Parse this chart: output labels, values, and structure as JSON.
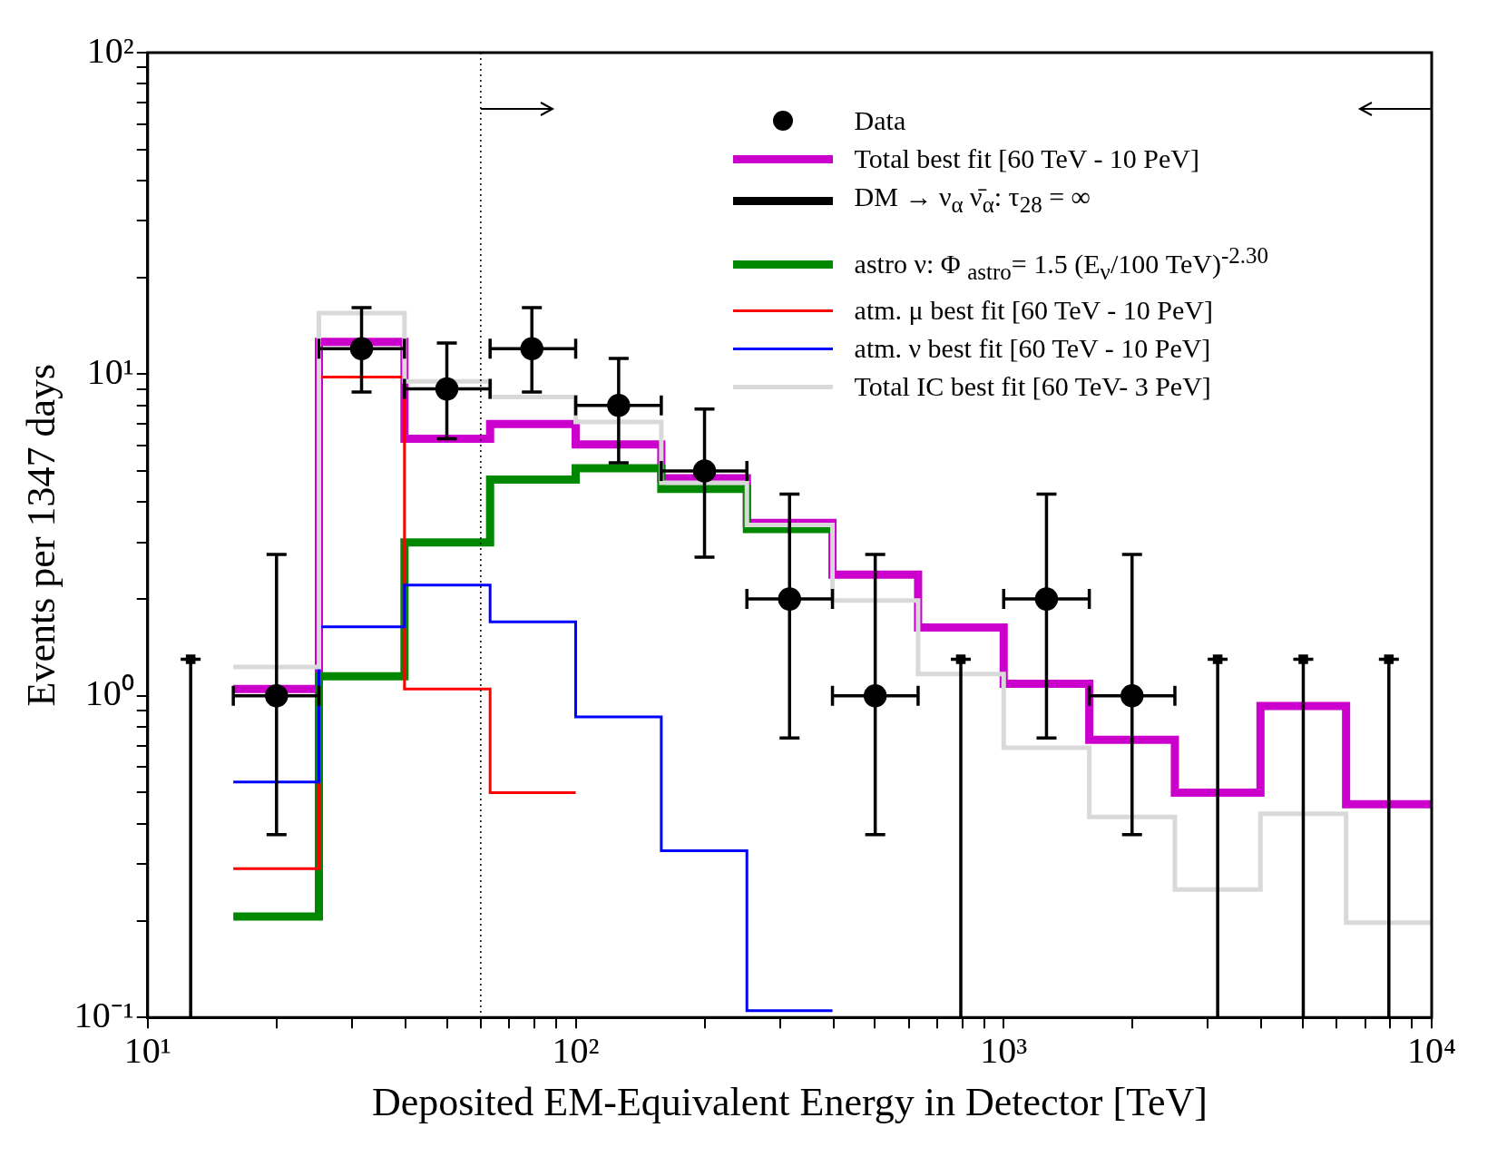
{
  "chart_data": {
    "type": "histogram",
    "xlabel": "Deposited EM-Equivalent Energy in Detector [TeV]",
    "ylabel": "Events per 1347 days",
    "log": "xy",
    "xlim": [
      10,
      10000
    ],
    "ylim": [
      0.1,
      100
    ],
    "xticks": [
      {
        "value": 10,
        "label": "10¹"
      },
      {
        "value": 20,
        "label": null
      },
      {
        "value": 30,
        "label": null
      },
      {
        "value": 40,
        "label": null
      },
      {
        "value": 50,
        "label": null
      },
      {
        "value": 60,
        "label": null
      },
      {
        "value": 70,
        "label": null
      },
      {
        "value": 80,
        "label": null
      },
      {
        "value": 90,
        "label": null
      },
      {
        "value": 100,
        "label": "10²"
      },
      {
        "value": 200,
        "label": null
      },
      {
        "value": 300,
        "label": null
      },
      {
        "value": 400,
        "label": null
      },
      {
        "value": 500,
        "label": null
      },
      {
        "value": 600,
        "label": null
      },
      {
        "value": 700,
        "label": null
      },
      {
        "value": 800,
        "label": null
      },
      {
        "value": 900,
        "label": null
      },
      {
        "value": 1000,
        "label": "10³"
      },
      {
        "value": 2000,
        "label": null
      },
      {
        "value": 3000,
        "label": null
      },
      {
        "value": 4000,
        "label": null
      },
      {
        "value": 5000,
        "label": null
      },
      {
        "value": 6000,
        "label": null
      },
      {
        "value": 7000,
        "label": null
      },
      {
        "value": 8000,
        "label": null
      },
      {
        "value": 9000,
        "label": null
      },
      {
        "value": 10000,
        "label": "10⁴"
      }
    ],
    "yticks": [
      {
        "value": 0.1,
        "label": "10⁻¹"
      },
      {
        "value": 0.2,
        "label": null
      },
      {
        "value": 0.3,
        "label": null
      },
      {
        "value": 0.4,
        "label": null
      },
      {
        "value": 0.5,
        "label": null
      },
      {
        "value": 0.6,
        "label": null
      },
      {
        "value": 0.7,
        "label": null
      },
      {
        "value": 0.8,
        "label": null
      },
      {
        "value": 0.9,
        "label": null
      },
      {
        "value": 1,
        "label": "10⁰"
      },
      {
        "value": 2,
        "label": null
      },
      {
        "value": 3,
        "label": null
      },
      {
        "value": 4,
        "label": null
      },
      {
        "value": 5,
        "label": null
      },
      {
        "value": 6,
        "label": null
      },
      {
        "value": 7,
        "label": null
      },
      {
        "value": 8,
        "label": null
      },
      {
        "value": 9,
        "label": null
      },
      {
        "value": 10,
        "label": "10¹"
      },
      {
        "value": 20,
        "label": null
      },
      {
        "value": 30,
        "label": null
      },
      {
        "value": 40,
        "label": null
      },
      {
        "value": 50,
        "label": null
      },
      {
        "value": 60,
        "label": null
      },
      {
        "value": 70,
        "label": null
      },
      {
        "value": 80,
        "label": null
      },
      {
        "value": 90,
        "label": null
      },
      {
        "value": 100,
        "label": "10²"
      }
    ],
    "bins": [
      15.85,
      25.12,
      39.81,
      63.1,
      100,
      158.5,
      251.2,
      398.1,
      631,
      1000,
      1585,
      2512,
      3981,
      6310,
      10000
    ],
    "legend": "top right",
    "ref_lines": [
      {
        "axis": "x",
        "value": 60,
        "color": "#000000",
        "line_style": "dotted"
      }
    ],
    "series": [
      {
        "name": "Data",
        "type": "scatter",
        "marker": "circle",
        "color": "#000000",
        "x": [
          20,
          31.6,
          50,
          79,
          126,
          200,
          316,
          501,
          1259,
          1995
        ],
        "values": [
          1,
          12,
          9,
          12,
          8,
          5,
          2,
          1,
          2,
          1
        ],
        "errors": [
          [
            0.37,
            2.75
          ],
          [
            8.8,
            16.1
          ],
          [
            6.3,
            12.5
          ],
          [
            8.8,
            16.1
          ],
          [
            5.3,
            11.2
          ],
          [
            2.7,
            7.8
          ],
          [
            0.74,
            4.24
          ],
          [
            0.37,
            2.75
          ],
          [
            0.74,
            4.24
          ],
          [
            0.37,
            2.75
          ]
        ],
        "xerrors": [
          [
            15.85,
            25.12
          ],
          [
            25.12,
            39.81
          ],
          [
            39.81,
            63.1
          ],
          [
            63.1,
            100
          ],
          [
            100,
            158.5
          ],
          [
            158.5,
            251.2
          ],
          [
            251.2,
            398.1
          ],
          [
            398.1,
            631
          ],
          [
            1000,
            1585
          ],
          [
            1585,
            2512
          ]
        ]
      },
      {
        "name": "Total best fit [60 TeV - 10 PeV]",
        "color": "#cc00cc",
        "values": [
          1.05,
          12.6,
          6.3,
          7.0,
          6.05,
          4.75,
          3.45,
          2.38,
          1.63,
          1.09,
          0.73,
          0.5,
          0.93,
          0.46
        ]
      },
      {
        "name": "DM → ν$_{α}$ ν̄$_{α}$:  τ$_{28}$ = ∞",
        "type": "line",
        "color": "#000000"
      },
      {
        "name": "astro ν: Φ $_{astro}$= 1.5 (E$_{ν}$/100 TeV)$^{-2.30}$",
        "color": "#008800",
        "bins": [
          15.85,
          25.12,
          39.81,
          63.1,
          100,
          158.5,
          251.2,
          398.1
        ],
        "values": [
          0.206,
          1.15,
          3.0,
          4.7,
          5.1,
          4.4,
          3.3
        ]
      },
      {
        "name": "atm. μ best fit [60 TeV - 10 PeV]",
        "color": "#ff0000",
        "bins": [
          15.85,
          25.12,
          39.81,
          63.1,
          100
        ],
        "values": [
          0.29,
          9.8,
          1.05,
          0.5
        ]
      },
      {
        "name": "atm. ν best fit [60 TeV - 10 PeV]",
        "color": "#0000ff",
        "bins": [
          15.85,
          25.12,
          39.81,
          63.1,
          100,
          158.5,
          251.2,
          398.1
        ],
        "values": [
          0.54,
          1.64,
          2.21,
          1.7,
          0.86,
          0.33,
          0.105
        ]
      },
      {
        "name": "Total IC best fit [60 TeV- 3 PeV]",
        "color": "#d9d9d9",
        "values": [
          1.23,
          15.5,
          9.5,
          8.5,
          7.1,
          4.6,
          3.4,
          1.98,
          1.17,
          0.69,
          0.42,
          0.25,
          0.43,
          0.197
        ]
      },
      {
        "type": "scatter",
        "marker": "square",
        "color": "#000000",
        "x": [
          12.6,
          794,
          3162,
          5012,
          7943
        ],
        "values": [
          1.3,
          1.3,
          1.3,
          1.3,
          1.3
        ],
        "errors": [
          [
            0.1,
            1.3
          ],
          [
            0.1,
            1.3
          ],
          [
            0.1,
            1.3
          ],
          [
            0.1,
            1.3
          ],
          [
            0.1,
            1.3
          ]
        ]
      }
    ]
  }
}
